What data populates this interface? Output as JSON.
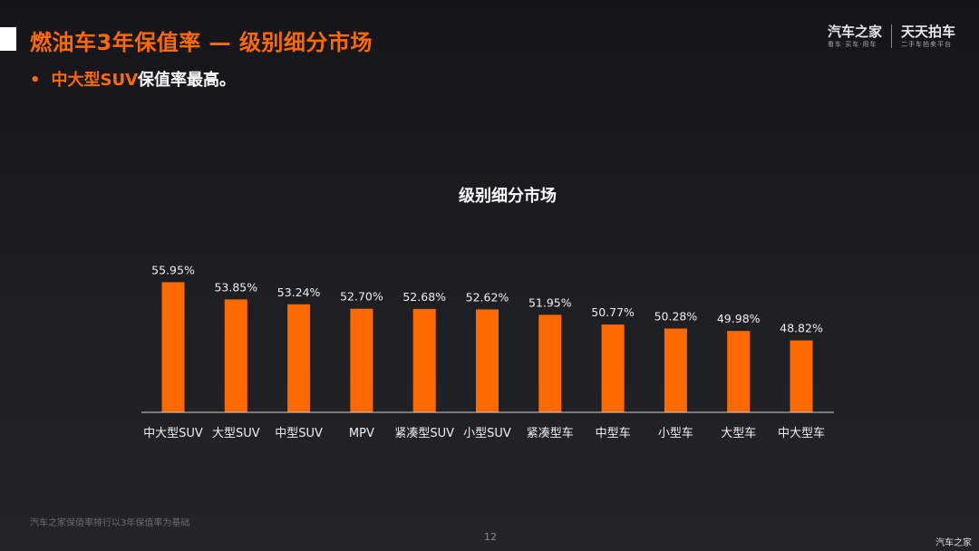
{
  "slide": {
    "title": "燃油车3年保值率 — 级别细分市场",
    "bullet_highlight": "中大型SUV",
    "bullet_rest": "保值率最高。",
    "bullet_symbol": "•",
    "footnote": "汽车之家保值率排行以3年保值率为基础",
    "page_number": "12",
    "watermark": "汽车之家"
  },
  "logo": {
    "brand1_main": "汽车之家",
    "brand1_sub": "看车·买车·用车",
    "brand2_main": "天天拍车",
    "brand2_sub": "二手车拍卖平台"
  },
  "chart_data": {
    "type": "bar",
    "title": "级别细分市场",
    "categories": [
      "中大型SUV",
      "大型SUV",
      "中型SUV",
      "MPV",
      "紧凑型SUV",
      "小型SUV",
      "紧凑型车",
      "中型车",
      "小型车",
      "大型车",
      "中大型车"
    ],
    "values": [
      55.95,
      53.85,
      53.24,
      52.7,
      52.68,
      52.62,
      51.95,
      50.77,
      50.28,
      49.98,
      48.82
    ],
    "value_labels": [
      "55.95%",
      "53.85%",
      "53.24%",
      "52.70%",
      "52.68%",
      "52.62%",
      "51.95%",
      "50.77%",
      "50.28%",
      "49.98%",
      "48.82%"
    ],
    "xlabel": "",
    "ylabel": "",
    "ylim": [
      40,
      56
    ],
    "grid": false,
    "legend": "none",
    "bar_color": "#ff6a00"
  }
}
